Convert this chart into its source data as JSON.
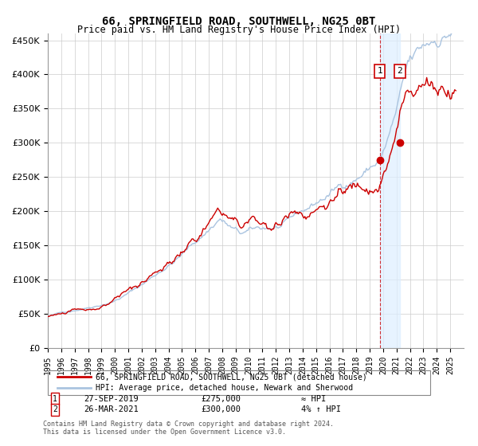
{
  "title": "66, SPRINGFIELD ROAD, SOUTHWELL, NG25 0BT",
  "subtitle": "Price paid vs. HM Land Registry's House Price Index (HPI)",
  "legend_line1": "66, SPRINGFIELD ROAD, SOUTHWELL, NG25 0BT (detached house)",
  "legend_line2": "HPI: Average price, detached house, Newark and Sherwood",
  "footer": "Contains HM Land Registry data © Crown copyright and database right 2024.\nThis data is licensed under the Open Government Licence v3.0.",
  "annotation1_label": "1",
  "annotation1_date": "27-SEP-2019",
  "annotation1_price": "£275,000",
  "annotation1_hpi": "≈ HPI",
  "annotation2_label": "2",
  "annotation2_date": "26-MAR-2021",
  "annotation2_price": "£300,000",
  "annotation2_hpi": "4% ↑ HPI",
  "hpi_color": "#aac4e0",
  "price_color": "#cc0000",
  "point_color": "#cc0000",
  "vline_color": "#cc0000",
  "shade_color": "#ddeeff",
  "ylim": [
    0,
    460000
  ],
  "yticks": [
    0,
    50000,
    100000,
    150000,
    200000,
    250000,
    300000,
    350000,
    400000,
    450000
  ],
  "background_color": "#ffffff",
  "grid_color": "#cccccc"
}
